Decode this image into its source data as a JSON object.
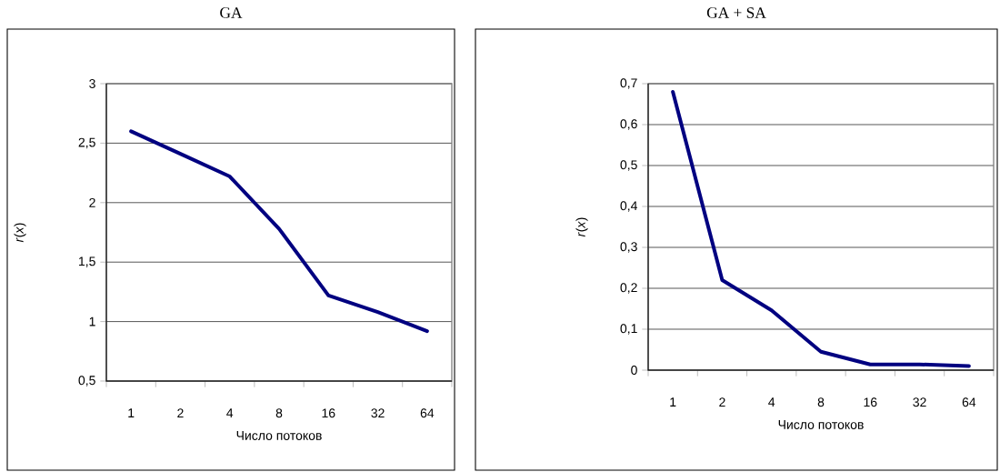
{
  "chart_data": [
    {
      "type": "line",
      "title": "GA",
      "xlabel": "Число потоков",
      "ylabel": "*r*(*x*)",
      "categories": [
        "1",
        "2",
        "4",
        "8",
        "16",
        "32",
        "64"
      ],
      "series": [
        {
          "color": "#000080",
          "values": [
            2.6,
            2.41,
            2.22,
            1.78,
            1.22,
            1.08,
            0.92
          ]
        }
      ],
      "ylim": [
        0.5,
        3
      ],
      "yticks": [
        {
          "value": 0.5,
          "label": "0,5"
        },
        1,
        {
          "value": 1.5,
          "label": "1,5"
        },
        2,
        {
          "value": 2.5,
          "label": "2,5"
        },
        3
      ],
      "grid": "y"
    },
    {
      "type": "line",
      "title": "GA + SA",
      "xlabel": "Число потоков",
      "ylabel": "*r*(*x*)",
      "categories": [
        "1",
        "2",
        "4",
        "8",
        "16",
        "32",
        "64"
      ],
      "series": [
        {
          "color": "#000080",
          "values": [
            0.68,
            0.22,
            0.146,
            0.045,
            0.014,
            0.014,
            0.01
          ]
        }
      ],
      "ylim": [
        0,
        0.7
      ],
      "yticks": [
        0,
        {
          "value": 0.1,
          "label": "0,1"
        },
        {
          "value": 0.2,
          "label": "0,2"
        },
        {
          "value": 0.3,
          "label": "0,3"
        },
        {
          "value": 0.4,
          "label": "0,4"
        },
        {
          "value": 0.5,
          "label": "0,5"
        },
        {
          "value": 0.6,
          "label": "0,6"
        },
        {
          "value": 0.7,
          "label": "0,7"
        }
      ],
      "grid": "y"
    }
  ]
}
